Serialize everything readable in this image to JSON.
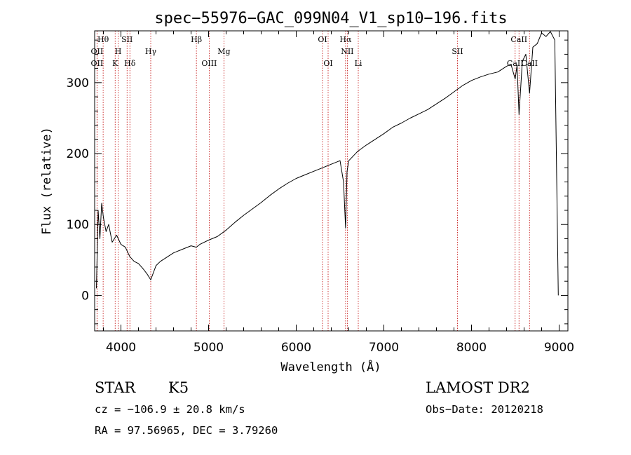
{
  "chart_data": {
    "type": "line",
    "title": "spec−55976−GAC_099N04_V1_sp10−196.fits",
    "xlabel": "Wavelength (Å)",
    "ylabel": "Flux (relative)",
    "xlim": [
      3700,
      9100
    ],
    "ylim": [
      -50,
      373
    ],
    "xticks": [
      4000,
      5000,
      6000,
      7000,
      8000,
      9000
    ],
    "yticks": [
      0,
      100,
      200,
      300
    ],
    "grid": false,
    "series": [
      {
        "x": [
          3720,
          3740,
          3760,
          3780,
          3800,
          3830,
          3860,
          3900,
          3950,
          4000,
          4050,
          4100,
          4150,
          4200,
          4250,
          4300,
          4340,
          4400,
          4450,
          4500,
          4600,
          4700,
          4800,
          4860,
          4900,
          5000,
          5100,
          5200,
          5300,
          5400,
          5500,
          5600,
          5700,
          5800,
          5900,
          6000,
          6100,
          6200,
          6300,
          6400,
          6500,
          6540,
          6563,
          6580,
          6600,
          6700,
          6800,
          6900,
          7000,
          7100,
          7200,
          7300,
          7400,
          7500,
          7600,
          7700,
          7800,
          7900,
          8000,
          8100,
          8200,
          8300,
          8400,
          8450,
          8498,
          8520,
          8542,
          8580,
          8620,
          8662,
          8700,
          8750,
          8800,
          8850,
          8900,
          8950,
          8990
        ],
        "y": [
          10,
          120,
          80,
          130,
          110,
          90,
          100,
          75,
          85,
          72,
          68,
          55,
          48,
          45,
          38,
          30,
          22,
          42,
          48,
          52,
          60,
          65,
          70,
          68,
          72,
          78,
          83,
          92,
          103,
          113,
          122,
          131,
          141,
          150,
          158,
          165,
          170,
          175,
          180,
          185,
          190,
          160,
          95,
          175,
          190,
          203,
          212,
          220,
          228,
          237,
          243,
          250,
          256,
          262,
          270,
          278,
          287,
          296,
          303,
          308,
          312,
          315,
          323,
          326,
          305,
          325,
          255,
          330,
          340,
          285,
          350,
          355,
          370,
          365,
          372,
          360,
          0
        ]
      }
    ],
    "spectral_lines": [
      {
        "label": "Hθ",
        "wavelength": 3797,
        "row": 0
      },
      {
        "label": "OII",
        "wavelength": 3727,
        "row": 1
      },
      {
        "label": "OII",
        "wavelength": 3727,
        "row": 2
      },
      {
        "label": "H",
        "wavelength": 3968,
        "row": 1
      },
      {
        "label": "K",
        "wavelength": 3934,
        "row": 2
      },
      {
        "label": "SII",
        "wavelength": 4070,
        "row": 0
      },
      {
        "label": "Hδ",
        "wavelength": 4102,
        "row": 2
      },
      {
        "label": "Hγ",
        "wavelength": 4340,
        "row": 1
      },
      {
        "label": "Hβ",
        "wavelength": 4861,
        "row": 0
      },
      {
        "label": "OIII",
        "wavelength": 5007,
        "row": 2
      },
      {
        "label": "Mg",
        "wavelength": 5175,
        "row": 1
      },
      {
        "label": "OI",
        "wavelength": 6300,
        "row": 0
      },
      {
        "label": "OI",
        "wavelength": 6364,
        "row": 2
      },
      {
        "label": "Hα",
        "wavelength": 6563,
        "row": 0
      },
      {
        "label": "NII",
        "wavelength": 6583,
        "row": 1
      },
      {
        "label": "Li",
        "wavelength": 6708,
        "row": 2
      },
      {
        "label": "SII",
        "wavelength": 7840,
        "row": 1
      },
      {
        "label": "CaII",
        "wavelength": 8542,
        "row": 0
      },
      {
        "label": "CaII",
        "wavelength": 8498,
        "row": 2
      },
      {
        "label": "CaII",
        "wavelength": 8662,
        "row": 2
      }
    ]
  },
  "info": {
    "star_class": "STAR",
    "subclass": "K5",
    "survey": "LAMOST DR2",
    "redshift": "cz = −106.9 ± 20.8 km/s",
    "obs_date": "Obs−Date: 20120218",
    "coords": "RA =  97.56965, DEC =   3.79260"
  },
  "colors": {
    "spectrum": "#000000",
    "line_marker": "#c00000",
    "axes": "#000000"
  }
}
